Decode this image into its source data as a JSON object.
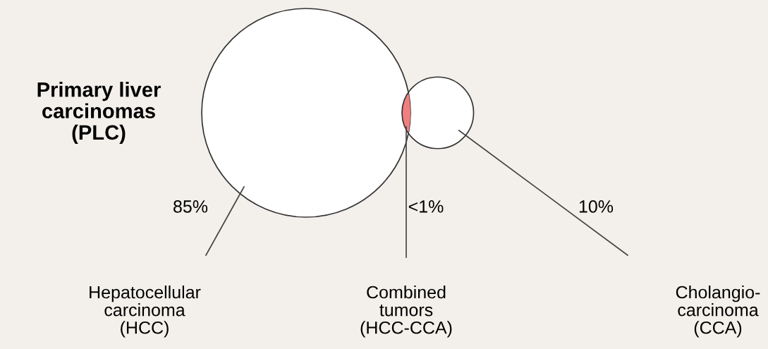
{
  "chart_data": {
    "type": "other",
    "title": "Primary liver\ncarcinomas\n(PLC)",
    "categories": [
      "Hepatocellular\ncarcinoma\n(HCC)",
      "Combined\ntumors\n(HCC-CCA)",
      "Cholangio-\ncarcinoma\n(CCA)"
    ],
    "values": [
      85,
      null,
      10
    ],
    "value_labels": [
      "85%",
      "<1%",
      "10%"
    ],
    "colors": [
      "#ffffff",
      "#f07f7f",
      "#ffffff"
    ]
  }
}
